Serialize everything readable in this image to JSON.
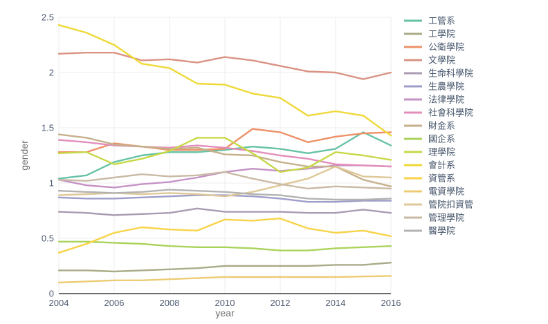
{
  "chart_data": {
    "type": "line",
    "title": "",
    "xlabel": "year",
    "ylabel": "gender",
    "xlim": [
      2004,
      2016
    ],
    "ylim": [
      0,
      2.5
    ],
    "grid": true,
    "legend_position": "right",
    "x": [
      2004,
      2005,
      2006,
      2007,
      2008,
      2009,
      2010,
      2011,
      2012,
      2013,
      2014,
      2015,
      2016
    ],
    "xticks": [
      2004,
      2006,
      2008,
      2010,
      2012,
      2014,
      2016
    ],
    "xtick_labels": [
      "2004",
      "2006",
      "2008",
      "2010",
      "2012",
      "2014",
      "2016"
    ],
    "yticks": [
      0,
      0.5,
      1,
      1.5,
      2,
      2.5
    ],
    "ytick_labels": [
      "0",
      "0.5",
      "1",
      "1.5",
      "2",
      "2.5"
    ],
    "axis_colors": {
      "tick_label": "#4d5a70",
      "axis_title": "#6e6e6e",
      "grid": "#ececec",
      "zero_line": "#3f3f3f",
      "legend_text": "#45556b"
    },
    "series": [
      {
        "name": "工管系",
        "color": "#66C2A5",
        "values": [
          1.04,
          1.07,
          1.19,
          1.25,
          1.28,
          1.28,
          1.3,
          1.33,
          1.31,
          1.27,
          1.31,
          1.46,
          1.34
        ]
      },
      {
        "name": "工學院",
        "color": "#AAAB87",
        "values": [
          0.21,
          0.21,
          0.2,
          0.21,
          0.22,
          0.23,
          0.25,
          0.25,
          0.25,
          0.25,
          0.26,
          0.26,
          0.28
        ]
      },
      {
        "name": "公衛學院",
        "color": "#ED9168",
        "values": [
          1.28,
          1.28,
          1.36,
          1.33,
          1.3,
          1.3,
          1.31,
          1.49,
          1.46,
          1.37,
          1.42,
          1.45,
          1.46
        ]
      },
      {
        "name": "文學院",
        "color": "#DA9383",
        "values": [
          2.17,
          2.18,
          2.18,
          2.11,
          2.12,
          2.09,
          2.14,
          2.11,
          2.06,
          2.01,
          2.0,
          1.94,
          2.0
        ]
      },
      {
        "name": "生命科學院",
        "color": "#A99BB2",
        "values": [
          0.74,
          0.73,
          0.71,
          0.72,
          0.73,
          0.77,
          0.74,
          0.74,
          0.74,
          0.73,
          0.73,
          0.76,
          0.73
        ]
      },
      {
        "name": "生農學院",
        "color": "#9E9DC9",
        "values": [
          0.87,
          0.86,
          0.86,
          0.87,
          0.88,
          0.89,
          0.89,
          0.88,
          0.86,
          0.83,
          0.83,
          0.84,
          0.84
        ]
      },
      {
        "name": "法律學院",
        "color": "#C592C6",
        "values": [
          1.03,
          0.98,
          0.96,
          0.99,
          1.01,
          1.05,
          1.1,
          1.13,
          1.11,
          1.13,
          1.16,
          1.16,
          1.15
        ]
      },
      {
        "name": "社會科學院",
        "color": "#E38EBA",
        "values": [
          1.39,
          1.37,
          1.34,
          1.33,
          1.32,
          1.34,
          1.32,
          1.29,
          1.25,
          1.22,
          1.17,
          1.16,
          1.15
        ]
      },
      {
        "name": "財金系",
        "color": "#C6B18C",
        "values": [
          1.44,
          1.41,
          1.35,
          1.33,
          1.31,
          1.32,
          1.26,
          1.25,
          1.19,
          1.15,
          1.15,
          1.03,
          0.97
        ]
      },
      {
        "name": "國企系",
        "color": "#AAD35B",
        "values": [
          0.47,
          0.47,
          0.46,
          0.45,
          0.43,
          0.42,
          0.42,
          0.41,
          0.39,
          0.39,
          0.41,
          0.42,
          0.43
        ]
      },
      {
        "name": "理學院",
        "color": "#C7D847",
        "values": [
          1.27,
          1.28,
          1.17,
          1.22,
          1.29,
          1.41,
          1.41,
          1.27,
          1.1,
          1.14,
          1.28,
          1.25,
          1.21
        ]
      },
      {
        "name": "會計系",
        "color": "#EED936",
        "values": [
          2.43,
          2.36,
          2.25,
          2.08,
          2.04,
          1.9,
          1.89,
          1.81,
          1.77,
          1.61,
          1.65,
          1.61,
          1.43
        ]
      },
      {
        "name": "資管系",
        "color": "#F8D348",
        "values": [
          0.37,
          0.45,
          0.55,
          0.6,
          0.58,
          0.57,
          0.67,
          0.66,
          0.68,
          0.59,
          0.55,
          0.57,
          0.52
        ]
      },
      {
        "name": "電資學院",
        "color": "#EDCB74",
        "values": [
          0.1,
          0.11,
          0.12,
          0.12,
          0.13,
          0.14,
          0.15,
          0.15,
          0.15,
          0.15,
          0.15,
          0.155,
          0.16
        ]
      },
      {
        "name": "管院扣資管",
        "color": "#DFC898",
        "values": [
          0.89,
          0.9,
          0.91,
          0.9,
          0.91,
          0.9,
          0.88,
          0.92,
          0.98,
          1.04,
          1.15,
          1.06,
          1.05
        ]
      },
      {
        "name": "管理學院",
        "color": "#C9BAA5",
        "values": [
          1.03,
          1.02,
          1.05,
          1.08,
          1.06,
          1.07,
          1.1,
          1.04,
          0.99,
          0.95,
          0.97,
          0.96,
          0.95
        ]
      },
      {
        "name": "醫學院",
        "color": "#B3B3B3",
        "values": [
          0.93,
          0.92,
          0.91,
          0.92,
          0.94,
          0.93,
          0.92,
          0.9,
          0.89,
          0.86,
          0.85,
          0.85,
          0.86
        ]
      }
    ]
  }
}
